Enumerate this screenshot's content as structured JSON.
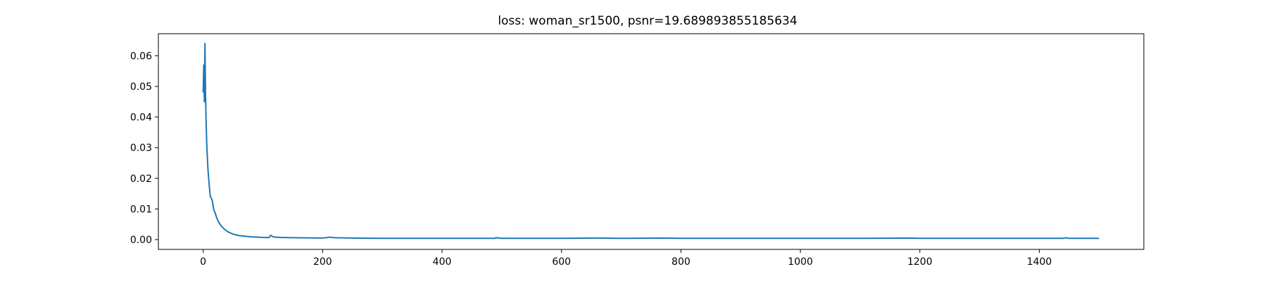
{
  "chart_data": {
    "type": "line",
    "title": "loss: woman_sr1500, psnr=19.689893855185634",
    "xlabel": "",
    "ylabel": "",
    "xlim": [
      -75,
      1575
    ],
    "ylim": [
      -0.0032,
      0.0672
    ],
    "xticks": [
      0,
      200,
      400,
      600,
      800,
      1000,
      1200,
      1400
    ],
    "xtick_labels": [
      "0",
      "200",
      "400",
      "600",
      "800",
      "1000",
      "1200",
      "1400"
    ],
    "yticks": [
      0.0,
      0.01,
      0.02,
      0.03,
      0.04,
      0.05,
      0.06
    ],
    "ytick_labels": [
      "0.00",
      "0.01",
      "0.02",
      "0.03",
      "0.04",
      "0.05",
      "0.06"
    ],
    "grid": false,
    "legend": "none",
    "series": [
      {
        "color": "#1f77b4",
        "x": [
          0,
          1,
          2,
          3,
          4,
          5,
          6,
          7,
          8,
          10,
          12,
          15,
          18,
          20,
          22,
          25,
          30,
          35,
          40,
          45,
          50,
          60,
          70,
          80,
          90,
          100,
          110,
          113,
          116,
          120,
          130,
          150,
          200,
          213,
          216,
          220,
          250,
          300,
          400,
          488,
          490,
          500,
          600,
          657,
          700,
          770,
          800,
          915,
          1000,
          1050,
          1100,
          1185,
          1200,
          1300,
          1440,
          1445,
          1450,
          1500
        ],
        "y": [
          0.048,
          0.057,
          0.045,
          0.064,
          0.047,
          0.038,
          0.031,
          0.027,
          0.023,
          0.018,
          0.014,
          0.013,
          0.0095,
          0.0088,
          0.0075,
          0.006,
          0.0045,
          0.0035,
          0.0027,
          0.0022,
          0.0018,
          0.0013,
          0.0011,
          0.0009,
          0.0008,
          0.0007,
          0.00065,
          0.0014,
          0.001,
          0.0008,
          0.0007,
          0.0006,
          0.0005,
          0.0008,
          0.0007,
          0.0006,
          0.0005,
          0.0004,
          0.0004,
          0.0004,
          0.0006,
          0.0004,
          0.0004,
          0.0005,
          0.0004,
          0.0005,
          0.0004,
          0.0004,
          0.0004,
          0.0004,
          0.0004,
          0.0005,
          0.0004,
          0.0004,
          0.0004,
          0.0006,
          0.0004,
          0.0004
        ]
      }
    ]
  }
}
